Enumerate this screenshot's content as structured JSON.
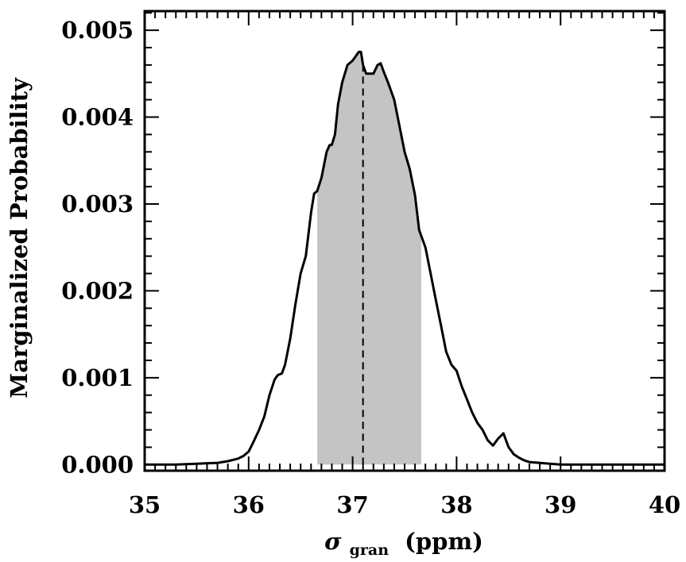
{
  "chart_data": {
    "type": "line",
    "xlabel": {
      "symbol": "σ",
      "subscript": "gran",
      "unit": "(ppm)"
    },
    "ylabel": "Marginalized Probability",
    "xlim": [
      35,
      40
    ],
    "ylim": [
      -7e-05,
      0.00522
    ],
    "x_ticks": [
      "35",
      "36",
      "37",
      "38",
      "39",
      "40"
    ],
    "y_ticks": [
      "0.000",
      "0.001",
      "0.002",
      "0.003",
      "0.004",
      "0.005"
    ],
    "grid": false,
    "legend": "none",
    "median": 37.1,
    "shaded_interval": [
      36.66,
      37.66
    ],
    "x": [
      35.0,
      35.3,
      35.5,
      35.7,
      35.8,
      35.9,
      35.95,
      36.0,
      36.05,
      36.1,
      36.15,
      36.2,
      36.25,
      36.28,
      36.32,
      36.35,
      36.4,
      36.45,
      36.5,
      36.55,
      36.6,
      36.63,
      36.66,
      36.7,
      36.75,
      36.78,
      36.8,
      36.83,
      36.86,
      36.9,
      36.95,
      37.0,
      37.03,
      37.06,
      37.08,
      37.1,
      37.13,
      37.16,
      37.2,
      37.24,
      37.27,
      37.3,
      37.34,
      37.4,
      37.45,
      37.5,
      37.55,
      37.6,
      37.64,
      37.7,
      37.75,
      37.8,
      37.85,
      37.9,
      37.95,
      38.0,
      38.05,
      38.1,
      38.15,
      38.2,
      38.25,
      38.3,
      38.35,
      38.4,
      38.45,
      38.5,
      38.55,
      38.6,
      38.65,
      38.7,
      38.8,
      38.9,
      39.0,
      39.2,
      39.5,
      40.0
    ],
    "values": [
      0.0,
      0.0,
      1e-05,
      2e-05,
      4e-05,
      7e-05,
      0.0001,
      0.00015,
      0.00027,
      0.0004,
      0.00055,
      0.0008,
      0.00098,
      0.00103,
      0.00105,
      0.00115,
      0.00145,
      0.00185,
      0.0022,
      0.0024,
      0.0029,
      0.00312,
      0.00315,
      0.0033,
      0.0036,
      0.00368,
      0.00368,
      0.0038,
      0.00415,
      0.0044,
      0.0046,
      0.00465,
      0.0047,
      0.00475,
      0.00475,
      0.0046,
      0.0045,
      0.0045,
      0.0045,
      0.0046,
      0.00462,
      0.00452,
      0.0044,
      0.0042,
      0.0039,
      0.0036,
      0.0034,
      0.0031,
      0.0027,
      0.0025,
      0.0022,
      0.0019,
      0.0016,
      0.0013,
      0.00115,
      0.00108,
      0.0009,
      0.00075,
      0.0006,
      0.00048,
      0.0004,
      0.00028,
      0.00022,
      0.0003,
      0.00036,
      0.0002,
      0.00012,
      8e-05,
      5e-05,
      3e-05,
      2e-05,
      1e-05,
      0.0,
      0.0,
      0.0,
      0.0
    ]
  }
}
